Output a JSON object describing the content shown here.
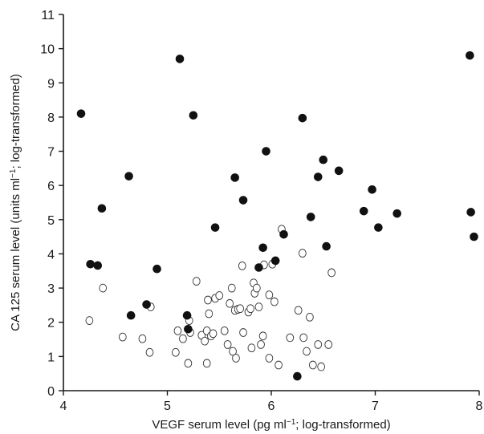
{
  "chart_data": {
    "type": "scatter",
    "title": "",
    "xlabel": {
      "pre": "VEGF serum level (pg ml",
      "sup": "−1",
      "post": "; log-transformed)"
    },
    "ylabel": {
      "pre": "CA 125 serum level (units ml",
      "sup": "−1",
      "post": "; log-transformed)"
    },
    "xlim": [
      4,
      8
    ],
    "ylim": [
      0,
      11
    ],
    "x_ticks": [
      4,
      5,
      6,
      7,
      8
    ],
    "x_tick_labels": [
      "4",
      "5",
      "6",
      "7",
      "8"
    ],
    "y_ticks": [
      0,
      1,
      2,
      3,
      4,
      5,
      6,
      7,
      8,
      9,
      10,
      11
    ],
    "y_tick_labels": [
      "0",
      "1",
      "2",
      "3",
      "4",
      "5",
      "6",
      "7",
      "8",
      "9",
      "10",
      "11"
    ],
    "grid": false,
    "legend": "none",
    "series": [
      {
        "style": "filled",
        "color": "#111111",
        "points": [
          [
            4.17,
            8.1
          ],
          [
            4.26,
            3.7
          ],
          [
            4.33,
            3.66
          ],
          [
            4.37,
            5.33
          ],
          [
            4.63,
            6.27
          ],
          [
            4.65,
            2.2
          ],
          [
            4.8,
            2.52
          ],
          [
            4.9,
            3.56
          ],
          [
            5.12,
            9.7
          ],
          [
            5.19,
            2.2
          ],
          [
            5.2,
            1.8
          ],
          [
            5.25,
            8.05
          ],
          [
            5.46,
            4.77
          ],
          [
            5.65,
            6.23
          ],
          [
            5.73,
            5.57
          ],
          [
            5.88,
            3.6
          ],
          [
            5.92,
            4.18
          ],
          [
            5.95,
            7.0
          ],
          [
            6.04,
            3.8
          ],
          [
            6.12,
            4.57
          ],
          [
            6.25,
            0.42
          ],
          [
            6.3,
            7.97
          ],
          [
            6.38,
            5.08
          ],
          [
            6.45,
            6.25
          ],
          [
            6.5,
            6.75
          ],
          [
            6.53,
            4.22
          ],
          [
            6.65,
            6.43
          ],
          [
            6.89,
            5.25
          ],
          [
            6.97,
            5.88
          ],
          [
            7.03,
            4.77
          ],
          [
            7.21,
            5.18
          ],
          [
            7.91,
            9.8
          ],
          [
            7.92,
            5.22
          ],
          [
            7.95,
            4.5
          ]
        ]
      },
      {
        "style": "open",
        "color": "#333333",
        "points": [
          [
            4.25,
            2.05
          ],
          [
            4.38,
            3.0
          ],
          [
            4.57,
            1.57
          ],
          [
            4.76,
            1.52
          ],
          [
            4.83,
            1.12
          ],
          [
            4.84,
            2.45
          ],
          [
            5.08,
            1.12
          ],
          [
            5.1,
            1.75
          ],
          [
            5.15,
            1.52
          ],
          [
            5.2,
            0.8
          ],
          [
            5.21,
            2.05
          ],
          [
            5.22,
            1.7
          ],
          [
            5.28,
            3.2
          ],
          [
            5.33,
            1.62
          ],
          [
            5.36,
            1.45
          ],
          [
            5.38,
            0.8
          ],
          [
            5.38,
            1.75
          ],
          [
            5.39,
            2.65
          ],
          [
            5.4,
            2.25
          ],
          [
            5.42,
            1.6
          ],
          [
            5.44,
            1.67
          ],
          [
            5.46,
            2.7
          ],
          [
            5.5,
            2.78
          ],
          [
            5.55,
            1.75
          ],
          [
            5.58,
            1.35
          ],
          [
            5.6,
            2.55
          ],
          [
            5.62,
            3.0
          ],
          [
            5.63,
            1.15
          ],
          [
            5.65,
            2.35
          ],
          [
            5.66,
            0.95
          ],
          [
            5.68,
            2.38
          ],
          [
            5.7,
            2.4
          ],
          [
            5.72,
            3.65
          ],
          [
            5.73,
            1.7
          ],
          [
            5.78,
            2.3
          ],
          [
            5.8,
            2.4
          ],
          [
            5.81,
            1.25
          ],
          [
            5.83,
            3.15
          ],
          [
            5.84,
            2.85
          ],
          [
            5.86,
            3.0
          ],
          [
            5.88,
            2.45
          ],
          [
            5.9,
            1.35
          ],
          [
            5.92,
            1.6
          ],
          [
            5.93,
            3.68
          ],
          [
            5.98,
            0.95
          ],
          [
            5.98,
            2.8
          ],
          [
            6.01,
            3.7
          ],
          [
            6.03,
            2.6
          ],
          [
            6.07,
            0.75
          ],
          [
            6.1,
            4.72
          ],
          [
            6.18,
            1.55
          ],
          [
            6.26,
            2.35
          ],
          [
            6.3,
            4.02
          ],
          [
            6.31,
            1.55
          ],
          [
            6.34,
            1.15
          ],
          [
            6.37,
            2.15
          ],
          [
            6.4,
            0.75
          ],
          [
            6.45,
            1.35
          ],
          [
            6.48,
            0.7
          ],
          [
            6.55,
            1.35
          ],
          [
            6.58,
            3.45
          ]
        ]
      }
    ]
  }
}
